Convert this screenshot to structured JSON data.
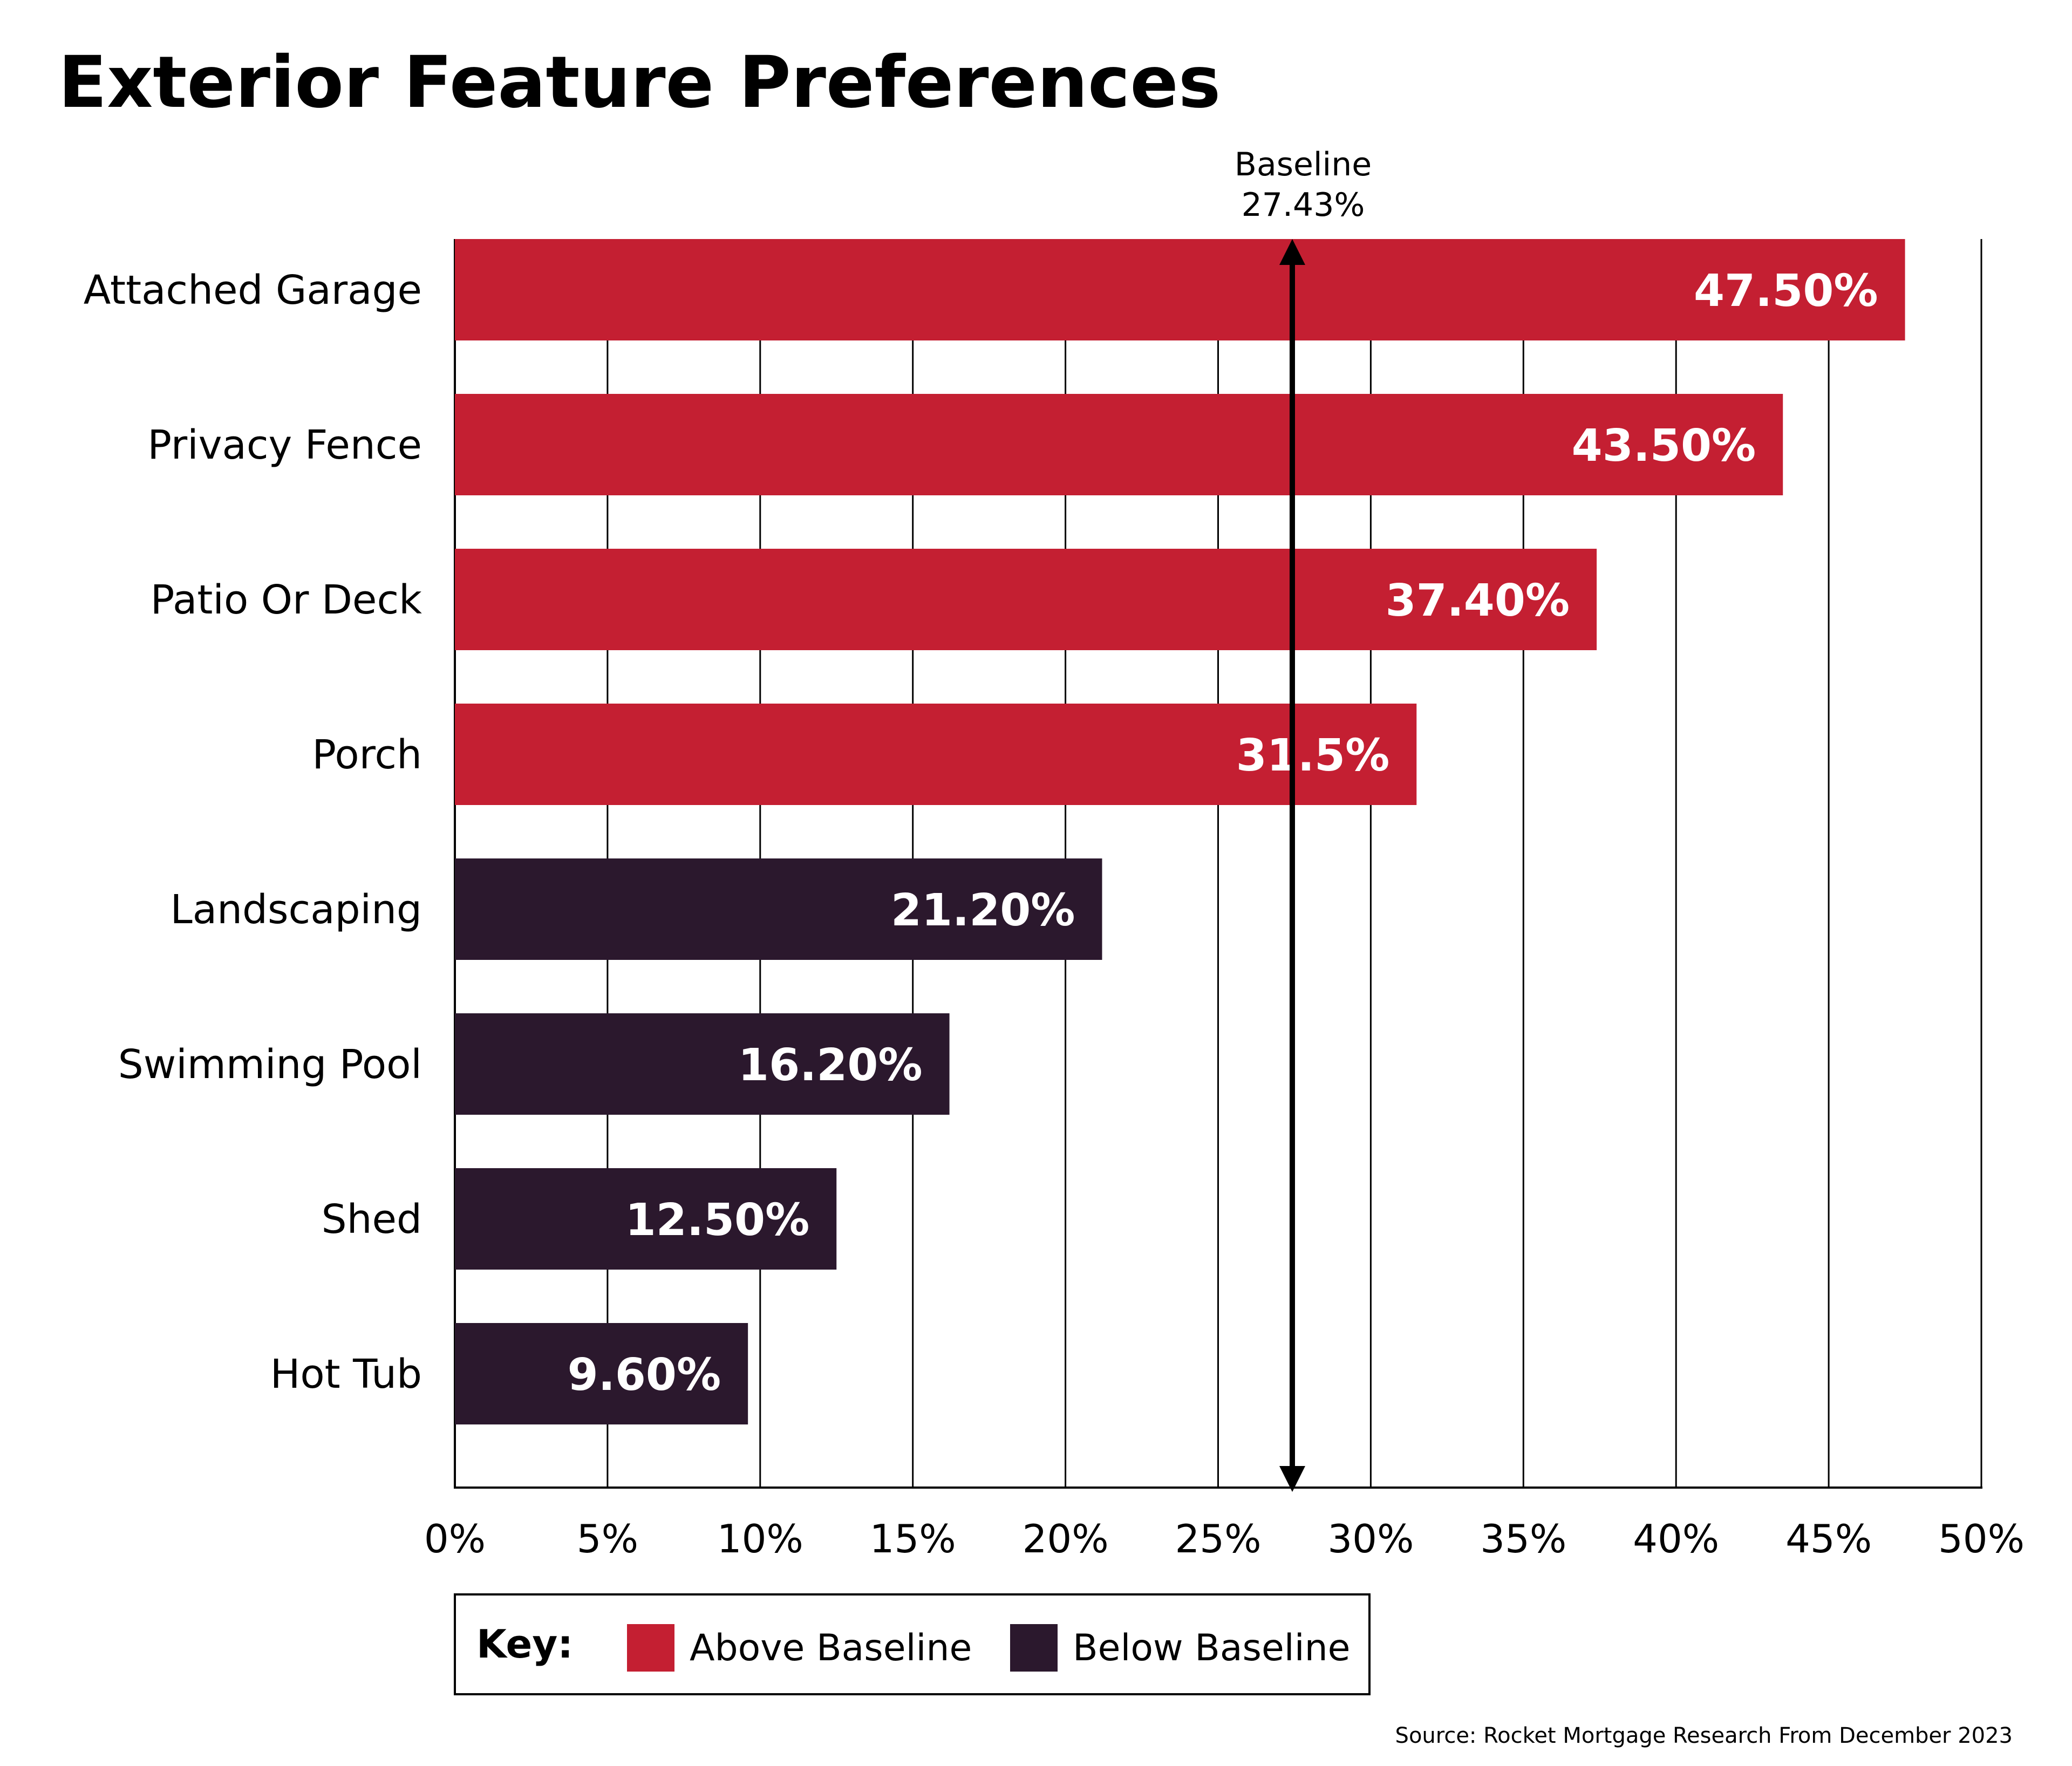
{
  "title": "Exterior Feature Preferences",
  "chart_data": {
    "type": "bar",
    "orientation": "horizontal",
    "categories": [
      "Attached Garage",
      "Privacy Fence",
      "Patio Or Deck",
      "Porch",
      "Landscaping",
      "Swimming Pool",
      "Shed",
      "Hot Tub"
    ],
    "values": [
      47.5,
      43.5,
      37.4,
      31.5,
      21.2,
      16.2,
      12.5,
      9.6
    ],
    "value_labels": [
      "47.50%",
      "43.50%",
      "37.40%",
      "31.5%",
      "21.20%",
      "16.20%",
      "12.50%",
      "9.60%"
    ],
    "groups": [
      "above",
      "above",
      "above",
      "above",
      "below",
      "below",
      "below",
      "below"
    ],
    "xlim": [
      0,
      50
    ],
    "x_ticks": [
      0,
      5,
      10,
      15,
      20,
      25,
      30,
      35,
      40,
      45,
      50
    ],
    "x_tick_labels": [
      "0%",
      "5%",
      "10%",
      "15%",
      "20%",
      "25%",
      "30%",
      "35%",
      "40%",
      "45%",
      "50%"
    ],
    "grid": "vertical",
    "baseline": {
      "value": 27.43,
      "label_line1": "Baseline",
      "label_line2": "27.43%"
    },
    "legend": {
      "title": "Key:",
      "placement": "bottom",
      "entries": [
        {
          "key": "above",
          "label": "Above Baseline"
        },
        {
          "key": "below",
          "label": "Below Baseline"
        }
      ]
    }
  },
  "colors": {
    "above": "#c41f32",
    "below": "#2b182d",
    "axis": "#000000"
  },
  "source": "Source: Rocket Mortgage Research From December 2023"
}
